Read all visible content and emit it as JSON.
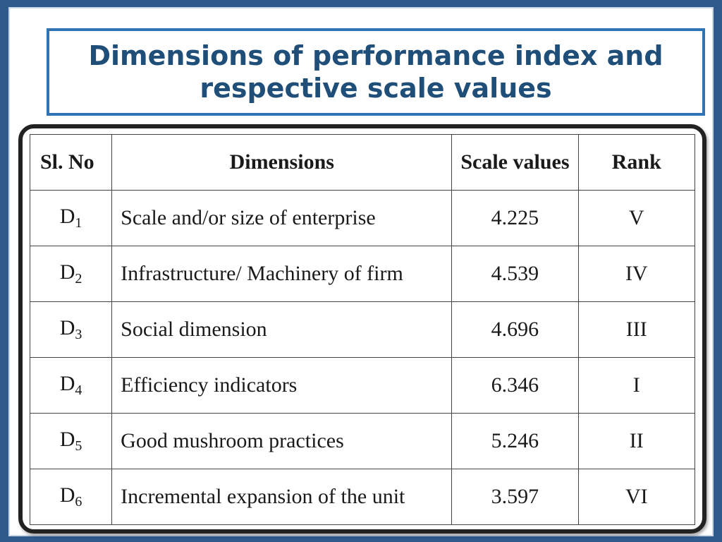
{
  "title": "Dimensions of performance index and respective scale values",
  "table": {
    "headers": {
      "sl_no": "Sl. No",
      "dimensions": "Dimensions",
      "scale_values": "Scale values",
      "rank": "Rank"
    },
    "rows": [
      {
        "code": "D",
        "sub": "1",
        "dimension": "Scale and/or size of enterprise",
        "scale_value": "4.225",
        "rank": "V"
      },
      {
        "code": "D",
        "sub": "2",
        "dimension": "Infrastructure/ Machinery of firm",
        "scale_value": "4.539",
        "rank": "IV"
      },
      {
        "code": "D",
        "sub": "3",
        "dimension": "Social dimension",
        "scale_value": "4.696",
        "rank": "III"
      },
      {
        "code": "D",
        "sub": "4",
        "dimension": "Efficiency indicators",
        "scale_value": "6.346",
        "rank": "I"
      },
      {
        "code": "D",
        "sub": "5",
        "dimension": "Good mushroom practices",
        "scale_value": "5.246",
        "rank": "II"
      },
      {
        "code": "D",
        "sub": "6",
        "dimension": "Incremental expansion of the unit",
        "scale_value": "3.597",
        "rank": "VI"
      }
    ]
  },
  "colors": {
    "frame": "#2e5b8c",
    "title_border": "#2f74b5",
    "title_text": "#1f4e79"
  }
}
